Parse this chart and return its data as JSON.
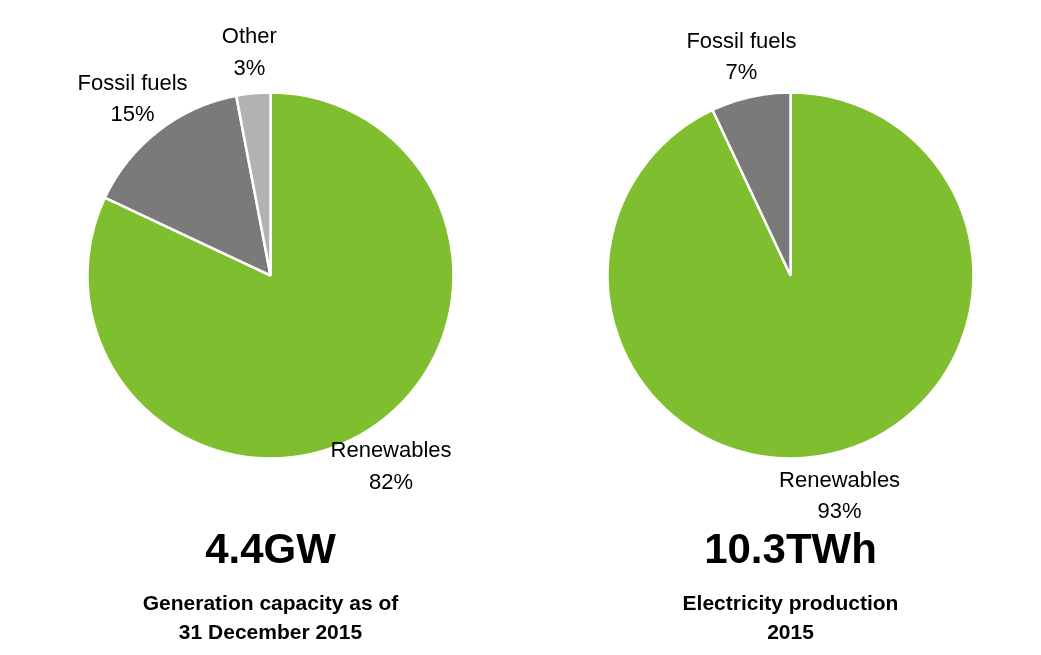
{
  "chart_data": [
    {
      "type": "pie",
      "title": "4.4GW",
      "subtitle": "Generation capacity as of 31 December 2015",
      "categories": [
        "Renewables",
        "Fossil fuels",
        "Other"
      ],
      "values": [
        82,
        15,
        3
      ],
      "value_labels": [
        "82%",
        "15%",
        "3%"
      ],
      "colors": [
        "#7fbf2f",
        "#7a7a7a",
        "#b2b2b2"
      ]
    },
    {
      "type": "pie",
      "title": "10.3TWh",
      "subtitle": "Electricity production 2015",
      "categories": [
        "Renewables",
        "Fossil fuels"
      ],
      "values": [
        93,
        7
      ],
      "value_labels": [
        "93%",
        "7%"
      ],
      "colors": [
        "#7fbf2f",
        "#7a7a7a"
      ]
    }
  ]
}
